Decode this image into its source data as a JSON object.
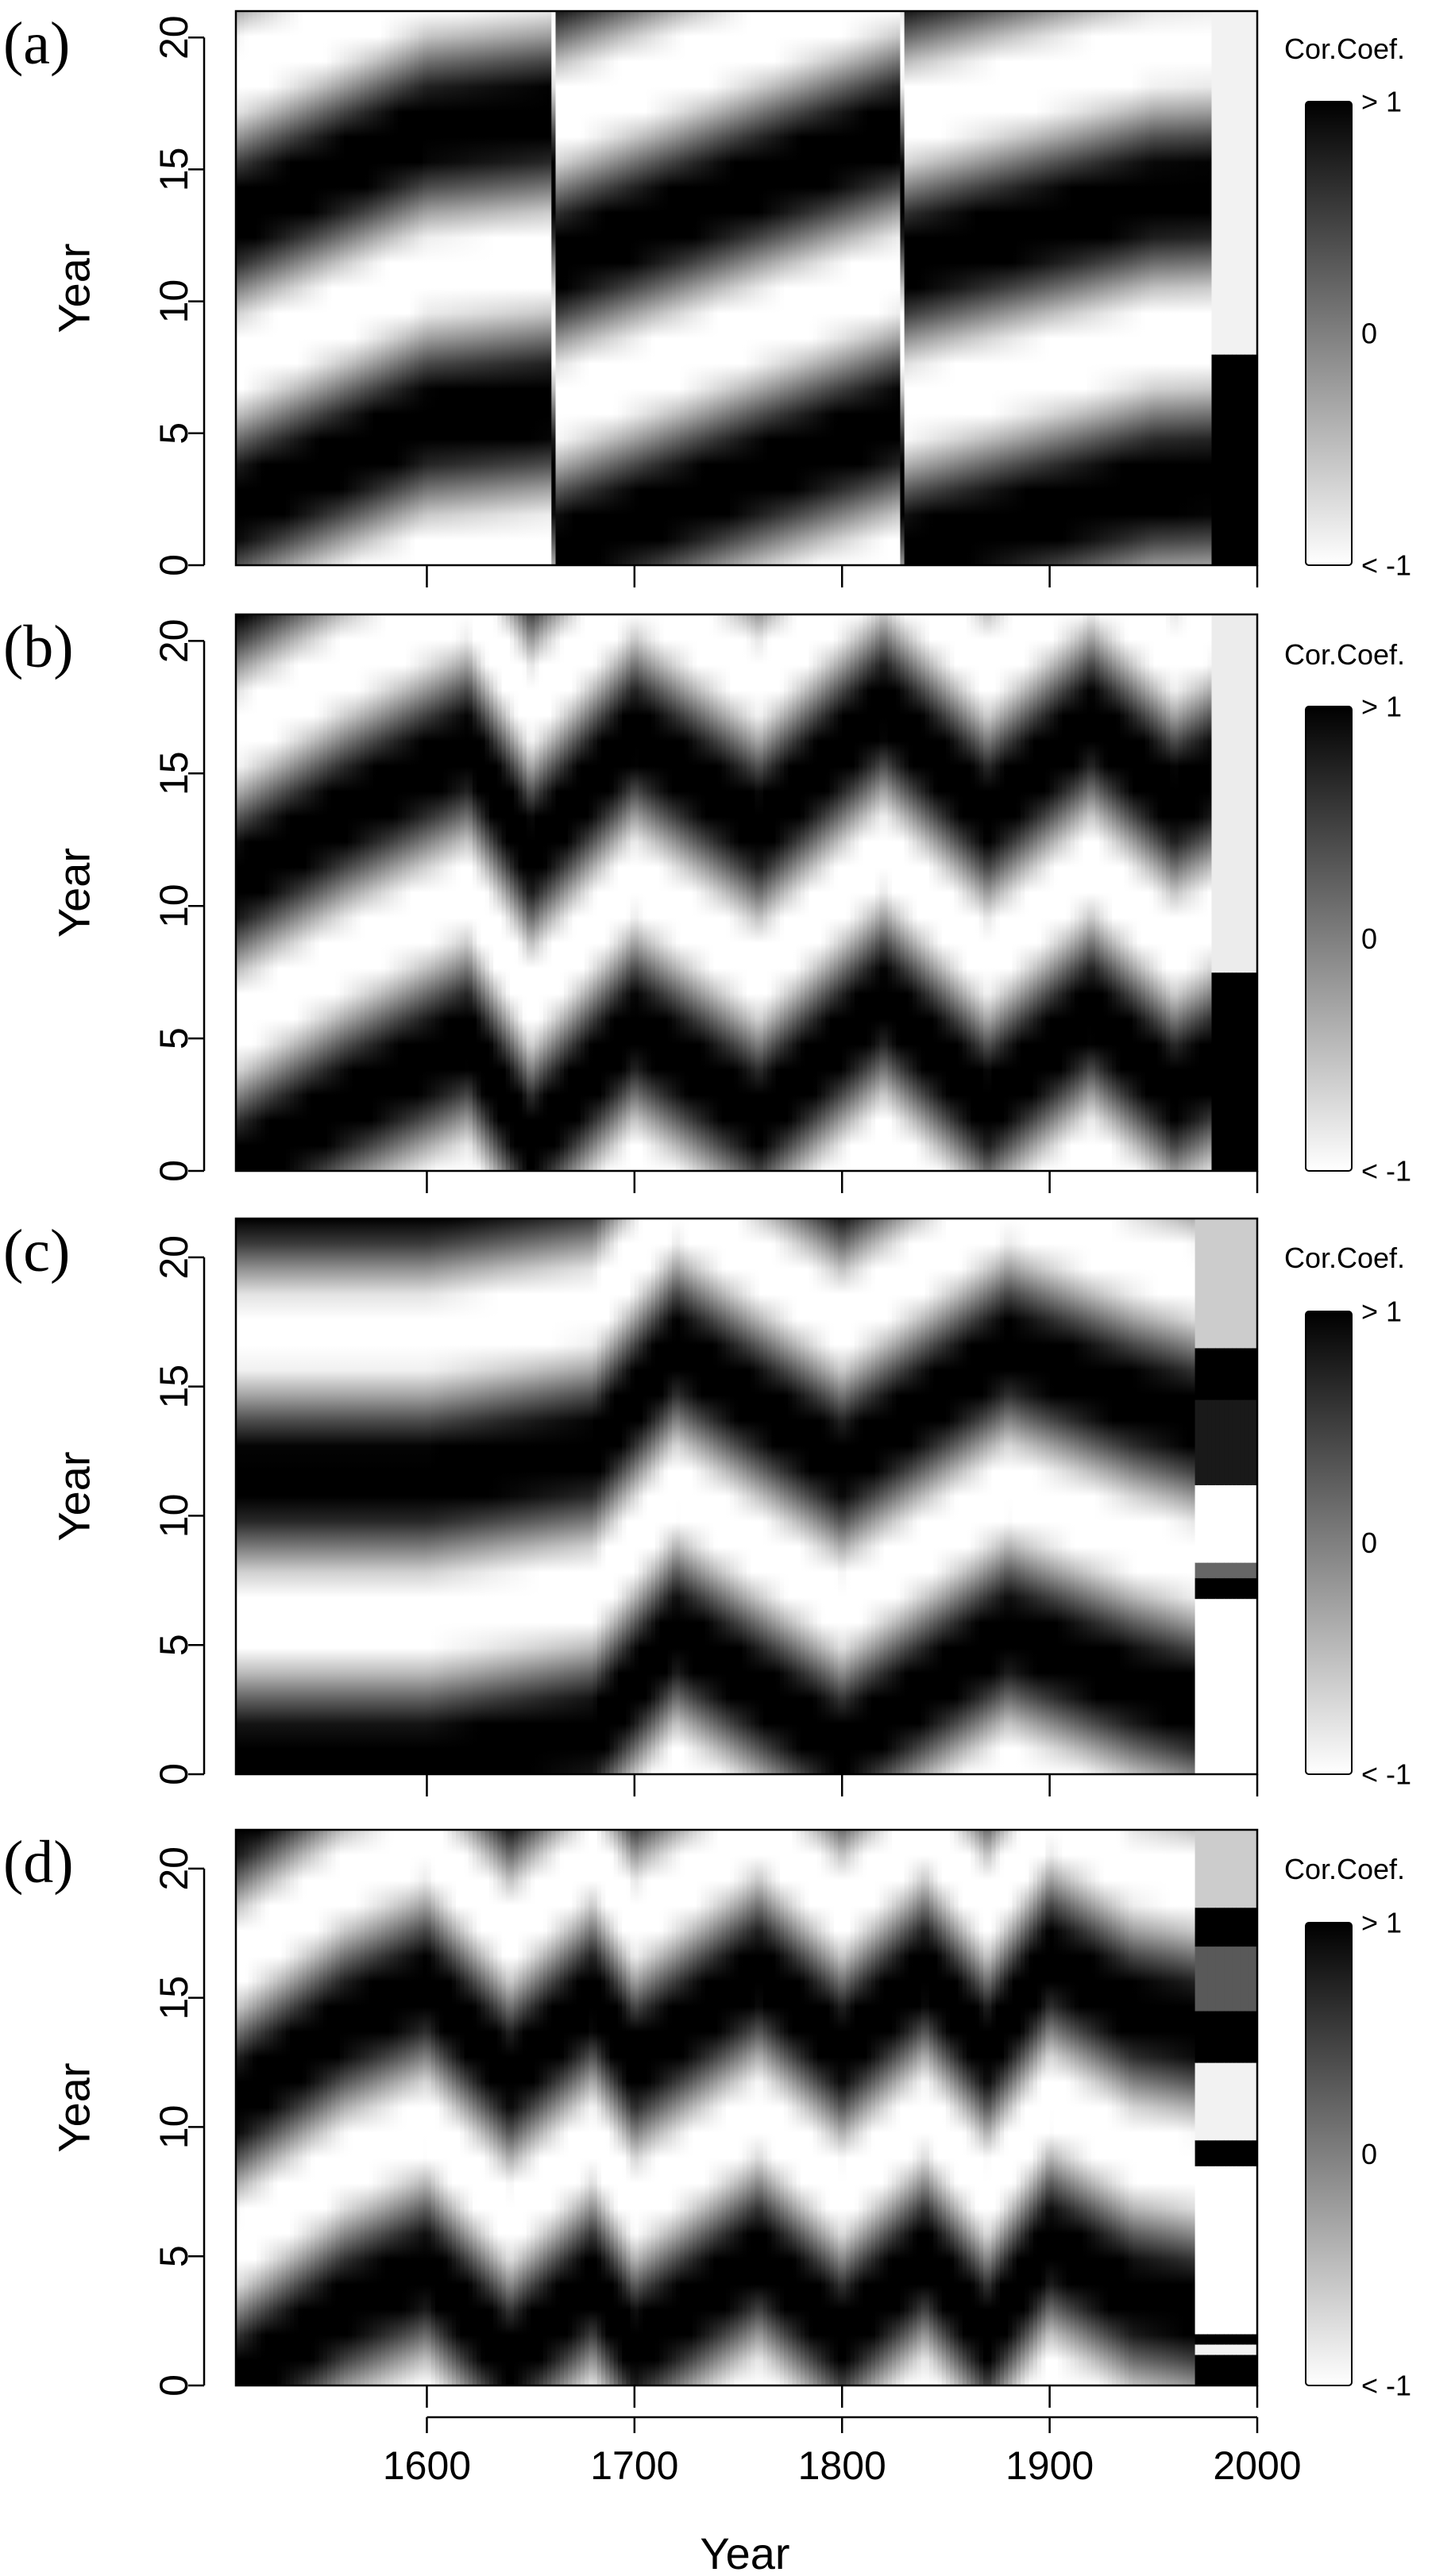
{
  "figure": {
    "xlabel": "Year",
    "x_ticks": [
      1600,
      1700,
      1800,
      1900,
      2000
    ]
  },
  "chart_data": [
    {
      "type": "heatmap",
      "panel_label": "(a)",
      "xlabel": "",
      "ylabel": "Year",
      "xlim": [
        1508,
        2000
      ],
      "ylim": [
        0,
        21
      ],
      "y_ticks": [
        0,
        5,
        10,
        15,
        20
      ],
      "colorbar": {
        "title": "Cor.Coef.",
        "labels": [
          "> 1",
          "0",
          "< -1"
        ],
        "range": [
          -1,
          1
        ],
        "colors": [
          "#ffffff",
          "#000000"
        ]
      },
      "pattern": {
        "period": 11,
        "phase_keypoints": [
          [
            1508,
            2.2
          ],
          [
            1600,
            5.5
          ],
          [
            1660,
            6.0
          ],
          [
            1662,
            0.5
          ],
          [
            1760,
            3.5
          ],
          [
            1828,
            5.5
          ],
          [
            1830,
            0.5
          ],
          [
            1950,
            3.0
          ],
          [
            2000,
            3.2
          ]
        ],
        "slope_keypoints": [
          [
            1508,
            -0.15
          ],
          [
            2000,
            -0.15
          ]
        ],
        "edge_start": 1978,
        "edge_bands": [
          [
            0,
            8,
            1
          ],
          [
            8,
            21,
            -0.9
          ]
        ]
      }
    },
    {
      "type": "heatmap",
      "panel_label": "(b)",
      "xlabel": "",
      "ylabel": "Year",
      "xlim": [
        1508,
        2000
      ],
      "ylim": [
        0,
        21
      ],
      "y_ticks": [
        0,
        5,
        10,
        15,
        20
      ],
      "colorbar": {
        "title": "Cor.Coef.",
        "labels": [
          "> 1",
          "0",
          "< -1"
        ],
        "range": [
          -1,
          1
        ],
        "colors": [
          "#ffffff",
          "#000000"
        ]
      },
      "pattern": {
        "period": 11,
        "phase_keypoints": [
          [
            1508,
            0
          ],
          [
            1560,
            2.5
          ],
          [
            1620,
            5.0
          ],
          [
            1650,
            1.0
          ],
          [
            1700,
            5.5
          ],
          [
            1760,
            2.0
          ],
          [
            1820,
            6.5
          ],
          [
            1870,
            2.5
          ],
          [
            1920,
            6.0
          ],
          [
            1960,
            3.0
          ],
          [
            2000,
            5.0
          ]
        ],
        "slope_keypoints": [
          [
            1508,
            -0.25
          ],
          [
            2000,
            -0.25
          ]
        ],
        "edge_start": 1978,
        "edge_bands": [
          [
            0,
            7.5,
            1
          ],
          [
            7.5,
            21,
            -0.85
          ]
        ]
      }
    },
    {
      "type": "heatmap",
      "panel_label": "(c)",
      "xlabel": "",
      "ylabel": "Year",
      "xlim": [
        1508,
        2000
      ],
      "ylim": [
        0,
        21.5
      ],
      "y_ticks": [
        0,
        5,
        10,
        15,
        20
      ],
      "colorbar": {
        "title": "Cor.Coef.",
        "labels": [
          "> 1",
          "0",
          "< -1"
        ],
        "range": [
          -1,
          1
        ],
        "colors": [
          "#ffffff",
          "#000000"
        ]
      },
      "pattern": {
        "period": 11,
        "phase_keypoints": [
          [
            1508,
            0.5
          ],
          [
            1600,
            0.5
          ],
          [
            1680,
            1.5
          ],
          [
            1720,
            5.5
          ],
          [
            1800,
            1.0
          ],
          [
            1880,
            5.5
          ],
          [
            1940,
            3.5
          ],
          [
            2000,
            2.0
          ]
        ],
        "slope_keypoints": [
          [
            1508,
            0
          ],
          [
            2000,
            0
          ]
        ],
        "edge_start": 1970,
        "edge_bands": [
          [
            0,
            6.8,
            -1
          ],
          [
            6.8,
            7.6,
            1
          ],
          [
            7.6,
            8.2,
            0.2
          ],
          [
            8.2,
            11.2,
            -1
          ],
          [
            11.2,
            14.5,
            0.8
          ],
          [
            14.5,
            16.5,
            1
          ],
          [
            16.5,
            21.5,
            -0.6
          ]
        ]
      }
    },
    {
      "type": "heatmap",
      "panel_label": "(d)",
      "xlabel": "Year",
      "ylabel": "Year",
      "xlim": [
        1508,
        2000
      ],
      "ylim": [
        0,
        21.5
      ],
      "y_ticks": [
        0,
        5,
        10,
        15,
        20
      ],
      "x_ticks": [
        1600,
        1700,
        1800,
        1900,
        2000
      ],
      "colorbar": {
        "title": "Cor.Coef.",
        "labels": [
          "> 1",
          "0",
          "< -1"
        ],
        "range": [
          -1,
          1
        ],
        "colors": [
          "#ffffff",
          "#000000"
        ]
      },
      "pattern": {
        "period": 11,
        "phase_keypoints": [
          [
            1508,
            0
          ],
          [
            1560,
            3.0
          ],
          [
            1600,
            4.5
          ],
          [
            1640,
            1.0
          ],
          [
            1680,
            4.0
          ],
          [
            1700,
            1.5
          ],
          [
            1760,
            5.0
          ],
          [
            1800,
            2.0
          ],
          [
            1840,
            5.0
          ],
          [
            1870,
            2.0
          ],
          [
            1900,
            5.5
          ],
          [
            1940,
            3.5
          ],
          [
            2000,
            2.5
          ]
        ],
        "slope_keypoints": [
          [
            1508,
            0.35
          ],
          [
            1700,
            0.25
          ],
          [
            1900,
            0.2
          ],
          [
            2000,
            0
          ]
        ],
        "edge_start": 1970,
        "edge_bands": [
          [
            0,
            1.2,
            1
          ],
          [
            1.2,
            1.6,
            -0.9
          ],
          [
            1.6,
            2.0,
            1
          ],
          [
            2.0,
            8.5,
            -1
          ],
          [
            8.5,
            9.5,
            1
          ],
          [
            9.5,
            12.5,
            -0.9
          ],
          [
            12.5,
            14.5,
            1
          ],
          [
            14.5,
            17.0,
            0.3
          ],
          [
            17.0,
            18.5,
            1
          ],
          [
            18.5,
            21.5,
            -0.6
          ]
        ]
      }
    }
  ]
}
